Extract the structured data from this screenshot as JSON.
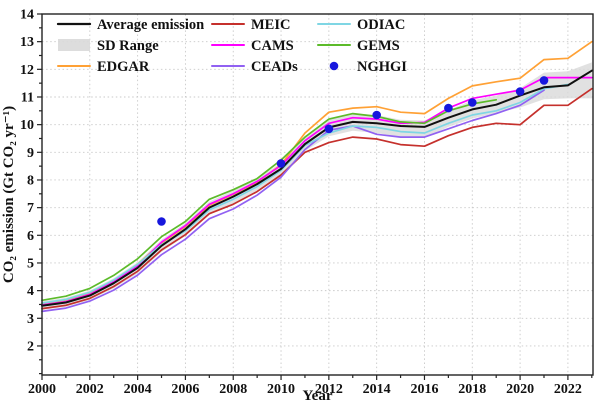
{
  "chart_data": {
    "type": "line",
    "title": "",
    "xlabel": "Year",
    "ylabel": "CO₂ emission (Gt CO₂ yr⁻¹)",
    "xlim": [
      2000,
      2023.05
    ],
    "ylim": [
      0.95,
      14
    ],
    "x_major_ticks": [
      2000,
      2002,
      2004,
      2006,
      2008,
      2010,
      2012,
      2014,
      2016,
      2018,
      2020,
      2022
    ],
    "y_major_ticks": [
      2,
      3,
      4,
      5,
      6,
      7,
      8,
      9,
      10,
      11,
      12,
      13,
      14
    ],
    "grid": "dotted-on-major-ticks",
    "background": "#ffffff",
    "years": [
      2000,
      2001,
      2002,
      2003,
      2004,
      2005,
      2006,
      2007,
      2008,
      2009,
      2010,
      2011,
      2012,
      2013,
      2014,
      2015,
      2016,
      2017,
      2018,
      2019,
      2020,
      2021,
      2022,
      2023
    ],
    "sd_range": {
      "name": "SD Range",
      "color": "#d9d9d9",
      "upper": [
        3.62,
        3.74,
        4.0,
        4.45,
        5.02,
        5.84,
        6.44,
        7.22,
        7.62,
        8.06,
        8.62,
        9.55,
        10.22,
        10.4,
        10.35,
        10.18,
        10.15,
        10.52,
        10.88,
        11.05,
        11.32,
        11.88,
        11.93,
        12.25
      ],
      "lower": [
        3.3,
        3.42,
        3.66,
        4.08,
        4.62,
        5.4,
        5.98,
        6.76,
        7.15,
        7.62,
        8.18,
        9.05,
        9.58,
        9.78,
        9.7,
        9.55,
        9.52,
        9.92,
        10.22,
        10.42,
        10.62,
        10.92,
        10.95,
        10.95
      ]
    },
    "series": [
      {
        "name": "EDGAR",
        "color": "#ffa135",
        "values": [
          3.5,
          3.62,
          3.88,
          4.35,
          4.95,
          5.72,
          6.32,
          7.08,
          7.48,
          7.92,
          8.55,
          9.7,
          10.45,
          10.6,
          10.65,
          10.45,
          10.4,
          10.95,
          11.4,
          11.55,
          11.68,
          12.35,
          12.4,
          13.0
        ]
      },
      {
        "name": "MEIC",
        "color": "#c5302c",
        "values": [
          3.35,
          3.47,
          3.72,
          4.15,
          4.7,
          5.47,
          6.02,
          6.78,
          7.12,
          7.58,
          8.18,
          9.0,
          9.35,
          9.55,
          9.48,
          9.28,
          9.22,
          9.6,
          9.9,
          10.05,
          10.0,
          10.7,
          10.7,
          11.3
        ]
      },
      {
        "name": "CAMS",
        "color": "#ff00ff",
        "values": [
          3.48,
          3.6,
          3.86,
          4.32,
          4.9,
          5.75,
          6.35,
          7.12,
          7.5,
          7.95,
          8.52,
          9.42,
          10.05,
          10.25,
          10.2,
          10.05,
          10.08,
          10.6,
          10.95,
          11.1,
          11.25,
          11.7,
          11.7,
          11.7
        ]
      },
      {
        "name": "CEADs",
        "color": "#9161f2",
        "values": [
          3.25,
          3.37,
          3.62,
          4.02,
          4.56,
          5.3,
          5.86,
          6.6,
          6.95,
          7.45,
          8.1,
          9.1,
          9.8,
          9.95,
          9.65,
          9.55,
          9.55,
          9.85,
          10.15,
          10.4,
          10.7,
          11.25,
          null,
          null
        ]
      },
      {
        "name": "ODIAC",
        "color": "#7fd6e4",
        "values": [
          3.55,
          3.68,
          3.94,
          4.38,
          4.95,
          5.66,
          6.16,
          6.92,
          7.3,
          7.76,
          8.35,
          9.25,
          9.7,
          9.95,
          9.9,
          9.75,
          9.7,
          10.05,
          10.35,
          10.5,
          10.8,
          11.3,
          11.45,
          null
        ]
      },
      {
        "name": "GEMS",
        "color": "#5cbb2a",
        "values": [
          3.65,
          3.8,
          4.08,
          4.55,
          5.15,
          5.95,
          6.5,
          7.3,
          7.65,
          8.05,
          8.72,
          9.55,
          10.2,
          10.4,
          10.3,
          10.1,
          10.05,
          10.5,
          10.75,
          10.9,
          null,
          null,
          null,
          null
        ]
      },
      {
        "name": "Average emission",
        "color": "#111111",
        "values": [
          3.45,
          3.57,
          3.82,
          4.27,
          4.82,
          5.62,
          6.22,
          7.0,
          7.4,
          7.85,
          8.4,
          9.3,
          9.9,
          10.1,
          10.05,
          9.95,
          9.92,
          10.25,
          10.55,
          10.72,
          11.05,
          11.35,
          11.42,
          11.95
        ]
      }
    ],
    "nghgi": {
      "name": "NGHGI",
      "color": "#1717dd",
      "points": [
        [
          2005,
          6.5
        ],
        [
          2010,
          8.6
        ],
        [
          2012,
          9.85
        ],
        [
          2014,
          10.35
        ],
        [
          2017,
          10.6
        ],
        [
          2018,
          10.8
        ],
        [
          2020,
          11.2
        ],
        [
          2021,
          11.6
        ]
      ]
    },
    "legend": {
      "position": "upper-left-inside",
      "columns": [
        [
          "Average emission",
          "SD Range",
          "EDGAR"
        ],
        [
          "MEIC",
          "CAMS",
          "CEADs"
        ],
        [
          "ODIAC",
          "GEMS",
          "NGHGI"
        ]
      ]
    }
  }
}
